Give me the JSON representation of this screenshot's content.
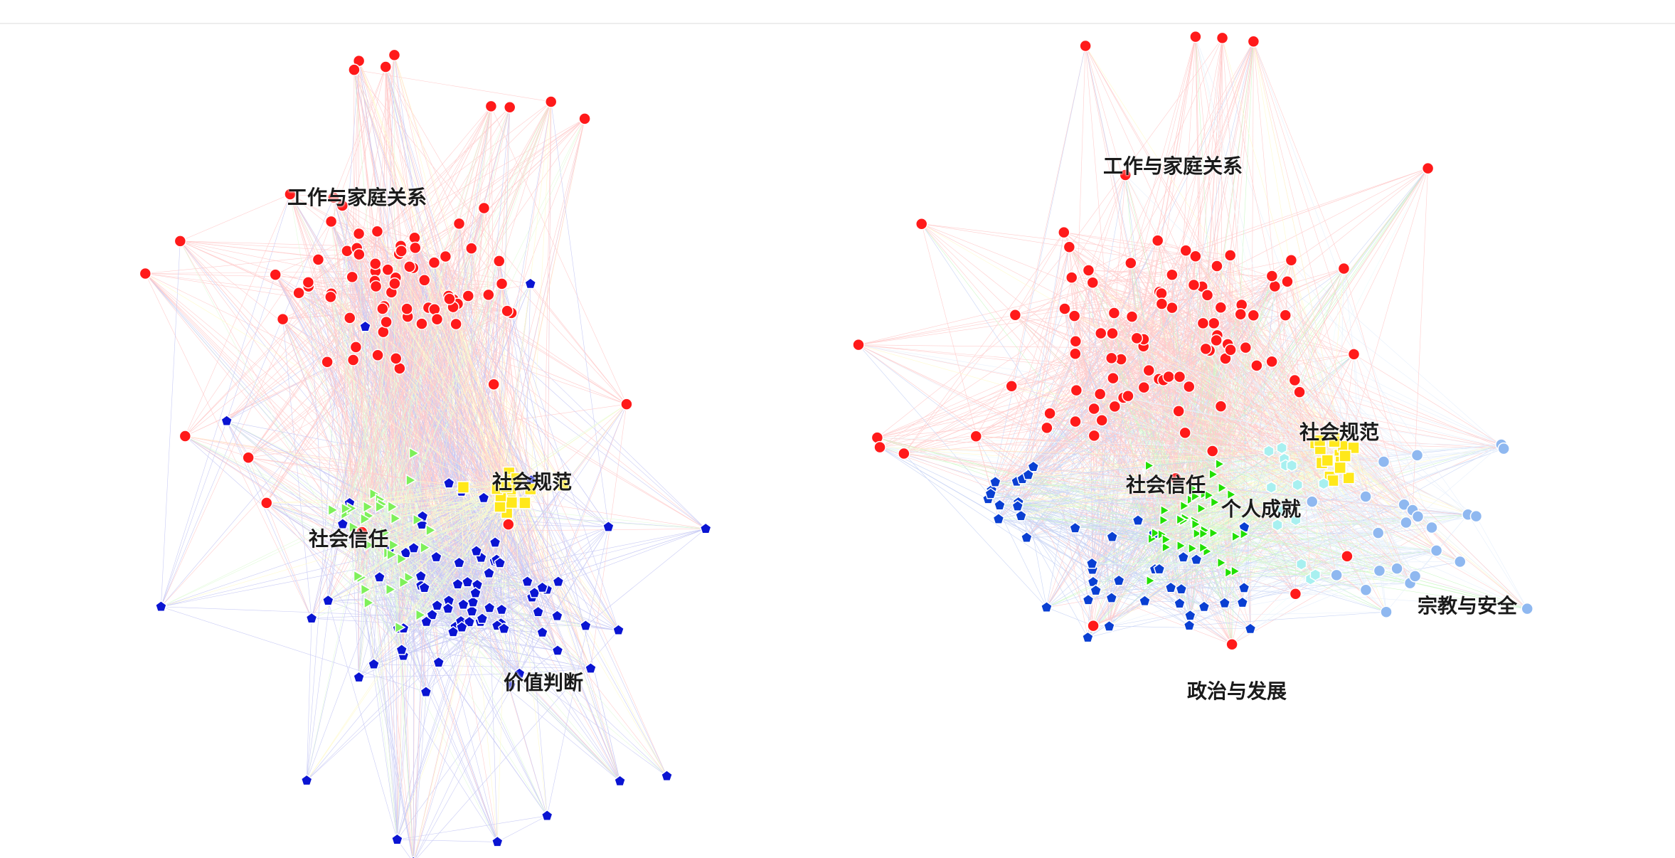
{
  "panels": [
    {
      "id": "left",
      "clusters": [
        {
          "key": "work_family",
          "label": "工作与家庭关系",
          "color": "#ff1a1a",
          "shape": "circle"
        },
        {
          "key": "value_judgment",
          "label": "价值判断",
          "color": "#0a14d2",
          "shape": "pentagon"
        },
        {
          "key": "social_trust",
          "label": "社会信任",
          "color": "#7ef05a",
          "shape": "triangle"
        },
        {
          "key": "social_norms",
          "label": "社会规范",
          "color": "#ffe81a",
          "shape": "square"
        }
      ]
    },
    {
      "id": "right",
      "clusters": [
        {
          "key": "work_family",
          "label": "工作与家庭关系",
          "color": "#ff1a1a",
          "shape": "circle"
        },
        {
          "key": "politics_dev",
          "label": "政治与发展",
          "color": "#0a3fd2",
          "shape": "pentagon"
        },
        {
          "key": "social_trust",
          "label": "社会信任",
          "color": "#22e000",
          "shape": "triangle"
        },
        {
          "key": "social_norms",
          "label": "社会规范",
          "color": "#ffe81a",
          "shape": "square"
        },
        {
          "key": "personal_achievement",
          "label": "个人成就",
          "color": "#a8f0f0",
          "shape": "hexagon"
        },
        {
          "key": "religion_security",
          "label": "宗教与安全",
          "color": "#8fb8f0",
          "shape": "circle"
        }
      ]
    }
  ]
}
